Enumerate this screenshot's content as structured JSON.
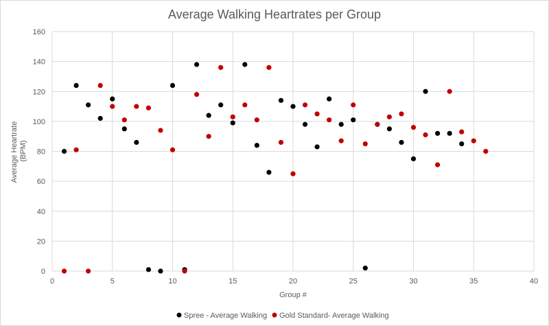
{
  "chart_data": {
    "type": "scatter",
    "title": "Average Walking Heartrates per Group",
    "xlabel": "Group #",
    "ylabel": [
      "Average Heartrate",
      "(BPM)"
    ],
    "xlim": [
      0,
      40
    ],
    "ylim": [
      0,
      160
    ],
    "xticks": [
      0,
      5,
      10,
      15,
      20,
      25,
      30,
      35,
      40
    ],
    "yticks": [
      0,
      20,
      40,
      60,
      80,
      100,
      120,
      140,
      160
    ],
    "grid": true,
    "legend": "bottom",
    "series": [
      {
        "name": "Spree - Average Walking",
        "color": "#000000",
        "x": [
          1,
          2,
          3,
          4,
          5,
          6,
          7,
          8,
          9,
          10,
          11,
          12,
          13,
          14,
          15,
          16,
          17,
          18,
          19,
          20,
          21,
          22,
          23,
          24,
          25,
          26,
          27,
          28,
          29,
          30,
          31,
          32,
          33,
          34
        ],
        "y": [
          80,
          124,
          111,
          102,
          115,
          95,
          86,
          1,
          0,
          124,
          1,
          138,
          104,
          111,
          99,
          138,
          84,
          66,
          114,
          110,
          98,
          83,
          115,
          98,
          101,
          2,
          98,
          95,
          86,
          75,
          120,
          92,
          92,
          85
        ]
      },
      {
        "name": "Gold Standard- Average Walking",
        "color": "#c00000",
        "x": [
          1,
          2,
          3,
          4,
          5,
          6,
          7,
          8,
          9,
          10,
          11,
          12,
          13,
          14,
          15,
          16,
          17,
          18,
          19,
          20,
          21,
          22,
          23,
          24,
          25,
          26,
          27,
          28,
          29,
          30,
          31,
          32,
          33,
          34,
          35,
          36
        ],
        "y": [
          0,
          81,
          0,
          124,
          110,
          101,
          110,
          109,
          94,
          81,
          0,
          118,
          90,
          136,
          103,
          111,
          101,
          136,
          86,
          65,
          111,
          105,
          101,
          87,
          111,
          85,
          98,
          103,
          105,
          96,
          91,
          71,
          120,
          93,
          87,
          80
        ]
      }
    ]
  }
}
